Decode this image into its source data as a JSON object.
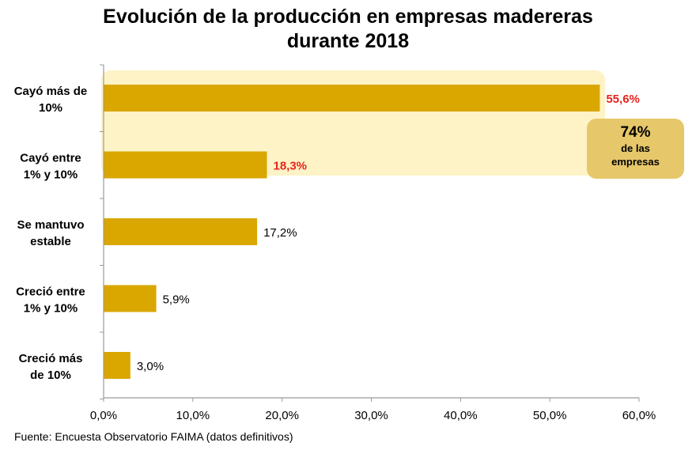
{
  "chart_data": {
    "type": "bar",
    "orientation": "horizontal",
    "title": [
      "Evolución de la producción en empresas madereras",
      "durante 2018"
    ],
    "categories": [
      [
        "Cayó más de",
        "10%"
      ],
      [
        "Cayó entre",
        "1% y 10%"
      ],
      [
        "Se mantuvo",
        "estable"
      ],
      [
        "Creció entre",
        "1% y 10%"
      ],
      [
        "Creció más",
        "de 10%"
      ]
    ],
    "values": [
      55.6,
      18.3,
      17.2,
      5.9,
      3.0
    ],
    "value_labels": [
      "55,6%",
      "18,3%",
      "17,2%",
      "5,9%",
      "3,0%"
    ],
    "highlighted": [
      true,
      true,
      false,
      false,
      false
    ],
    "xlim": [
      0,
      60
    ],
    "xticks": [
      0,
      10,
      20,
      30,
      40,
      50,
      60
    ],
    "xtick_labels": [
      "0,0%",
      "10,0%",
      "20,0%",
      "30,0%",
      "40,0%",
      "50,0%",
      "60,0%"
    ],
    "grid": false,
    "callout": {
      "value": "74%",
      "line1": "de las",
      "line2": "empresas"
    }
  },
  "colors": {
    "bar": "#daa600",
    "highlight_band": "#fdf3c6",
    "highlight_label": "#e8231d",
    "callout_bg": "#e6c76a",
    "axis": "#9a9a9a"
  },
  "source": "Fuente: Encuesta Observatorio FAIMA (datos definitivos)"
}
